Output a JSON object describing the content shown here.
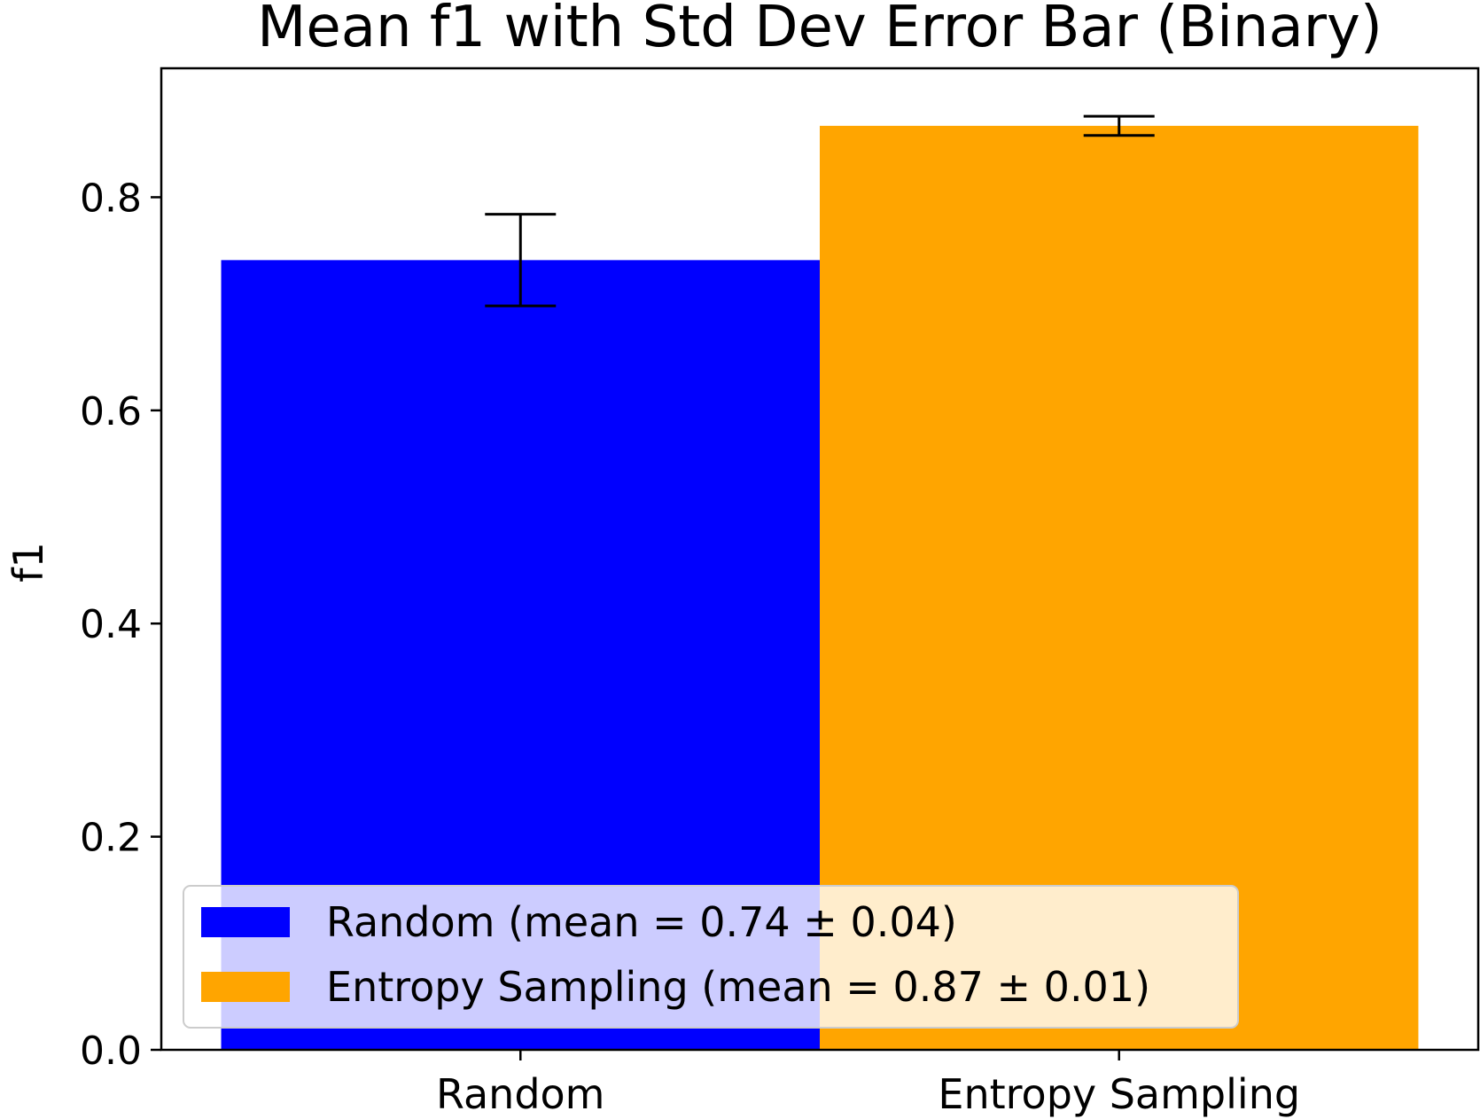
{
  "chart_data": {
    "type": "bar",
    "title": "Mean f1 with Std Dev Error Bar (Binary)",
    "xlabel": "",
    "ylabel": "f1",
    "categories": [
      "Random",
      "Entropy Sampling"
    ],
    "values": [
      0.741,
      0.867
    ],
    "errors": [
      0.043,
      0.009
    ],
    "colors": [
      "#0000ff",
      "#ffa500"
    ],
    "ylim": [
      0,
      0.921
    ],
    "yticks": [
      0.0,
      0.2,
      0.4,
      0.6,
      0.8
    ],
    "ytick_labels": [
      "0.0",
      "0.2",
      "0.4",
      "0.6",
      "0.8"
    ],
    "grid": false,
    "legend": {
      "placement": "lower-left",
      "entries": [
        {
          "label": "Random (mean = 0.74 ± 0.04)",
          "color": "#0000ff"
        },
        {
          "label": "Entropy Sampling (mean = 0.87 ± 0.01)",
          "color": "#ffa500"
        }
      ]
    }
  }
}
